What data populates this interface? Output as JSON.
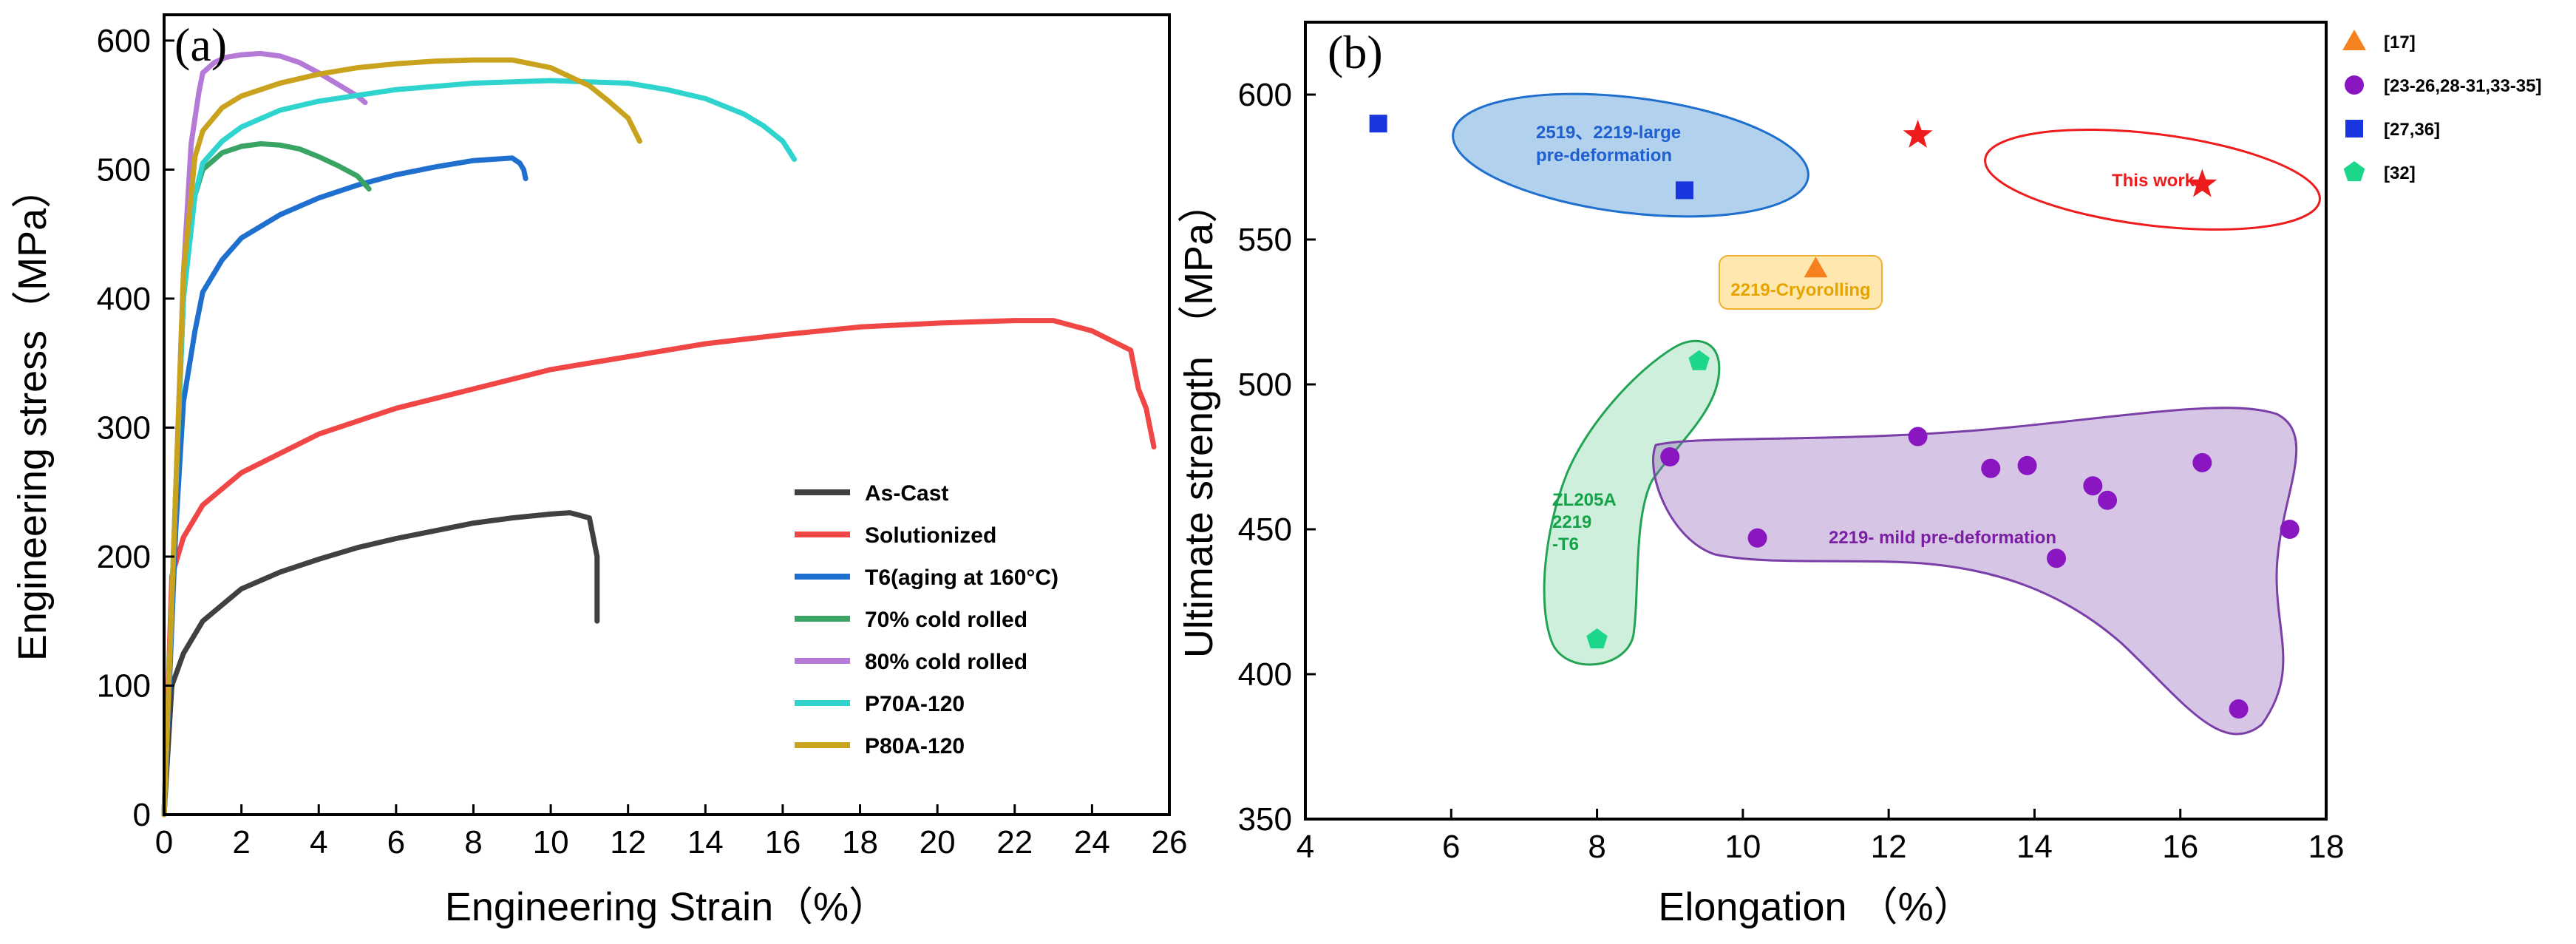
{
  "chart_data": [
    {
      "type": "line",
      "panel_label": "(a)",
      "title": "",
      "xlabel": "Engineering Strain（%）",
      "ylabel": "Engineering stress（MPa）",
      "xlim": [
        0,
        26
      ],
      "ylim": [
        0,
        620
      ],
      "xticks": [
        0,
        2,
        4,
        6,
        8,
        10,
        12,
        14,
        16,
        18,
        20,
        22,
        24,
        26
      ],
      "yticks": [
        0,
        100,
        200,
        300,
        400,
        500,
        600
      ],
      "grid": false,
      "legend_position": "bottom-right",
      "series": [
        {
          "name": "As-Cast",
          "color": "#404040",
          "x": [
            0,
            0.2,
            0.5,
            1,
            2,
            3,
            4,
            5,
            6,
            7,
            8,
            9,
            10,
            10.5,
            11.0,
            11.2,
            11.2
          ],
          "y": [
            0,
            100,
            125,
            150,
            175,
            188,
            198,
            207,
            214,
            220,
            226,
            230,
            233,
            234,
            230,
            200,
            150
          ]
        },
        {
          "name": "Solutionized",
          "color": "#f04646",
          "x": [
            0,
            0.2,
            0.5,
            1,
            2,
            4,
            6,
            8,
            10,
            12,
            14,
            16,
            18,
            20,
            22,
            23,
            24,
            25,
            25.2,
            25.4,
            25.5,
            25.6
          ],
          "y": [
            0,
            185,
            215,
            240,
            265,
            295,
            315,
            330,
            345,
            355,
            365,
            372,
            378,
            381,
            383,
            383,
            375,
            360,
            330,
            315,
            300,
            285
          ]
        },
        {
          "name": "T6(aging at 160°C)",
          "color": "#1f6fcf",
          "x": [
            0,
            0.3,
            0.5,
            0.8,
            1.0,
            1.5,
            2,
            3,
            4,
            5,
            6,
            7,
            8,
            8.5,
            9.0,
            9.2,
            9.3,
            9.35
          ],
          "y": [
            0,
            220,
            320,
            375,
            405,
            430,
            447,
            465,
            478,
            488,
            496,
            502,
            507,
            508,
            509,
            505,
            500,
            493
          ]
        },
        {
          "name": "70% cold rolled",
          "color": "#3aa465",
          "x": [
            0,
            0.3,
            0.5,
            0.7,
            1.0,
            1.5,
            2.0,
            2.5,
            3.0,
            3.5,
            4.0,
            4.5,
            5.0,
            5.3
          ],
          "y": [
            0,
            250,
            400,
            470,
            500,
            513,
            518,
            520,
            519,
            516,
            510,
            503,
            495,
            485
          ]
        },
        {
          "name": "80% cold rolled",
          "color": "#b57ad8",
          "x": [
            0,
            0.3,
            0.5,
            0.7,
            0.9,
            1.0,
            1.3,
            1.6,
            2.0,
            2.5,
            3.0,
            3.5,
            4.0,
            4.5,
            5.0,
            5.2
          ],
          "y": [
            0,
            250,
            420,
            520,
            560,
            575,
            583,
            587,
            589,
            590,
            588,
            583,
            575,
            566,
            557,
            552
          ]
        },
        {
          "name": "P70A-120",
          "color": "#2fd4cf",
          "x": [
            0,
            0.3,
            0.5,
            0.8,
            1.0,
            1.5,
            2,
            3,
            4,
            6,
            8,
            10,
            12,
            13,
            14,
            15,
            15.5,
            16,
            16.3
          ],
          "y": [
            0,
            250,
            400,
            480,
            505,
            522,
            533,
            546,
            553,
            562,
            567,
            569,
            567,
            562,
            555,
            543,
            534,
            522,
            508
          ]
        },
        {
          "name": "P80A-120",
          "color": "#c9a21e",
          "x": [
            0,
            0.3,
            0.5,
            0.8,
            1.0,
            1.5,
            2,
            3,
            4,
            5,
            6,
            7,
            8,
            9,
            10,
            11,
            11.5,
            12.0,
            12.3
          ],
          "y": [
            0,
            250,
            420,
            510,
            530,
            548,
            557,
            567,
            574,
            579,
            582,
            584,
            585,
            585,
            579,
            565,
            553,
            540,
            522
          ]
        }
      ]
    },
    {
      "type": "scatter",
      "panel_label": "(b)",
      "title": "",
      "xlabel": "Elongation （%）",
      "ylabel": "Ultimate strength （MPa）",
      "xlim": [
        4,
        18
      ],
      "ylim": [
        350,
        625
      ],
      "xticks": [
        4,
        6,
        8,
        10,
        12,
        14,
        16,
        18
      ],
      "yticks": [
        350,
        400,
        450,
        500,
        550,
        600
      ],
      "grid": false,
      "legend_position": "top-right outside",
      "series": [
        {
          "name": "[17]",
          "marker": "triangle",
          "color": "#f5821f",
          "x": [
            11.0
          ],
          "y": [
            540
          ]
        },
        {
          "name": "[23-26,28-31,33-35]",
          "marker": "circle",
          "color": "#8a16c2",
          "x": [
            9.0,
            10.2,
            12.4,
            13.4,
            13.9,
            14.3,
            14.8,
            15.0,
            16.3,
            16.8,
            17.5
          ],
          "y": [
            475,
            447,
            482,
            471,
            472,
            440,
            465,
            460,
            473,
            388,
            450
          ]
        },
        {
          "name": "[27,36]",
          "marker": "square",
          "color": "#1935e0",
          "x": [
            5.0,
            9.2
          ],
          "y": [
            590,
            567
          ]
        },
        {
          "name": "[32]",
          "marker": "pentagon",
          "color": "#1cd68a",
          "x": [
            8.0,
            9.4
          ],
          "y": [
            412,
            508
          ]
        },
        {
          "name": "This work",
          "marker": "star",
          "color": "#ee1c1c",
          "x": [
            12.4,
            16.3
          ],
          "y": [
            586,
            569
          ]
        }
      ],
      "annotations": [
        {
          "text_lines": [
            "2519、2219-large",
            "pre-deformation"
          ],
          "color": "#1f5fd0",
          "fill": "rgba(60,140,210,0.40)",
          "stroke": "#1f6fcf"
        },
        {
          "text_lines": [
            "This work"
          ],
          "color": "#ee1c1c",
          "fill": "none",
          "stroke": "#ee1c1c"
        },
        {
          "text_lines": [
            "2219-Cryorolling"
          ],
          "color": "#e6a400",
          "fill": "rgba(255,205,80,0.45)",
          "stroke": "#f0b030"
        },
        {
          "text_lines": [
            "ZL205A",
            "2219",
            "-T6"
          ],
          "color": "#15a34a",
          "fill": "rgba(60,190,110,0.25)",
          "stroke": "#22a455"
        },
        {
          "text_lines": [
            "2219- mild pre-deformation"
          ],
          "color": "#7b1fa2",
          "fill": "rgba(140,90,180,0.35)",
          "stroke": "#7b3fa8"
        }
      ]
    }
  ]
}
